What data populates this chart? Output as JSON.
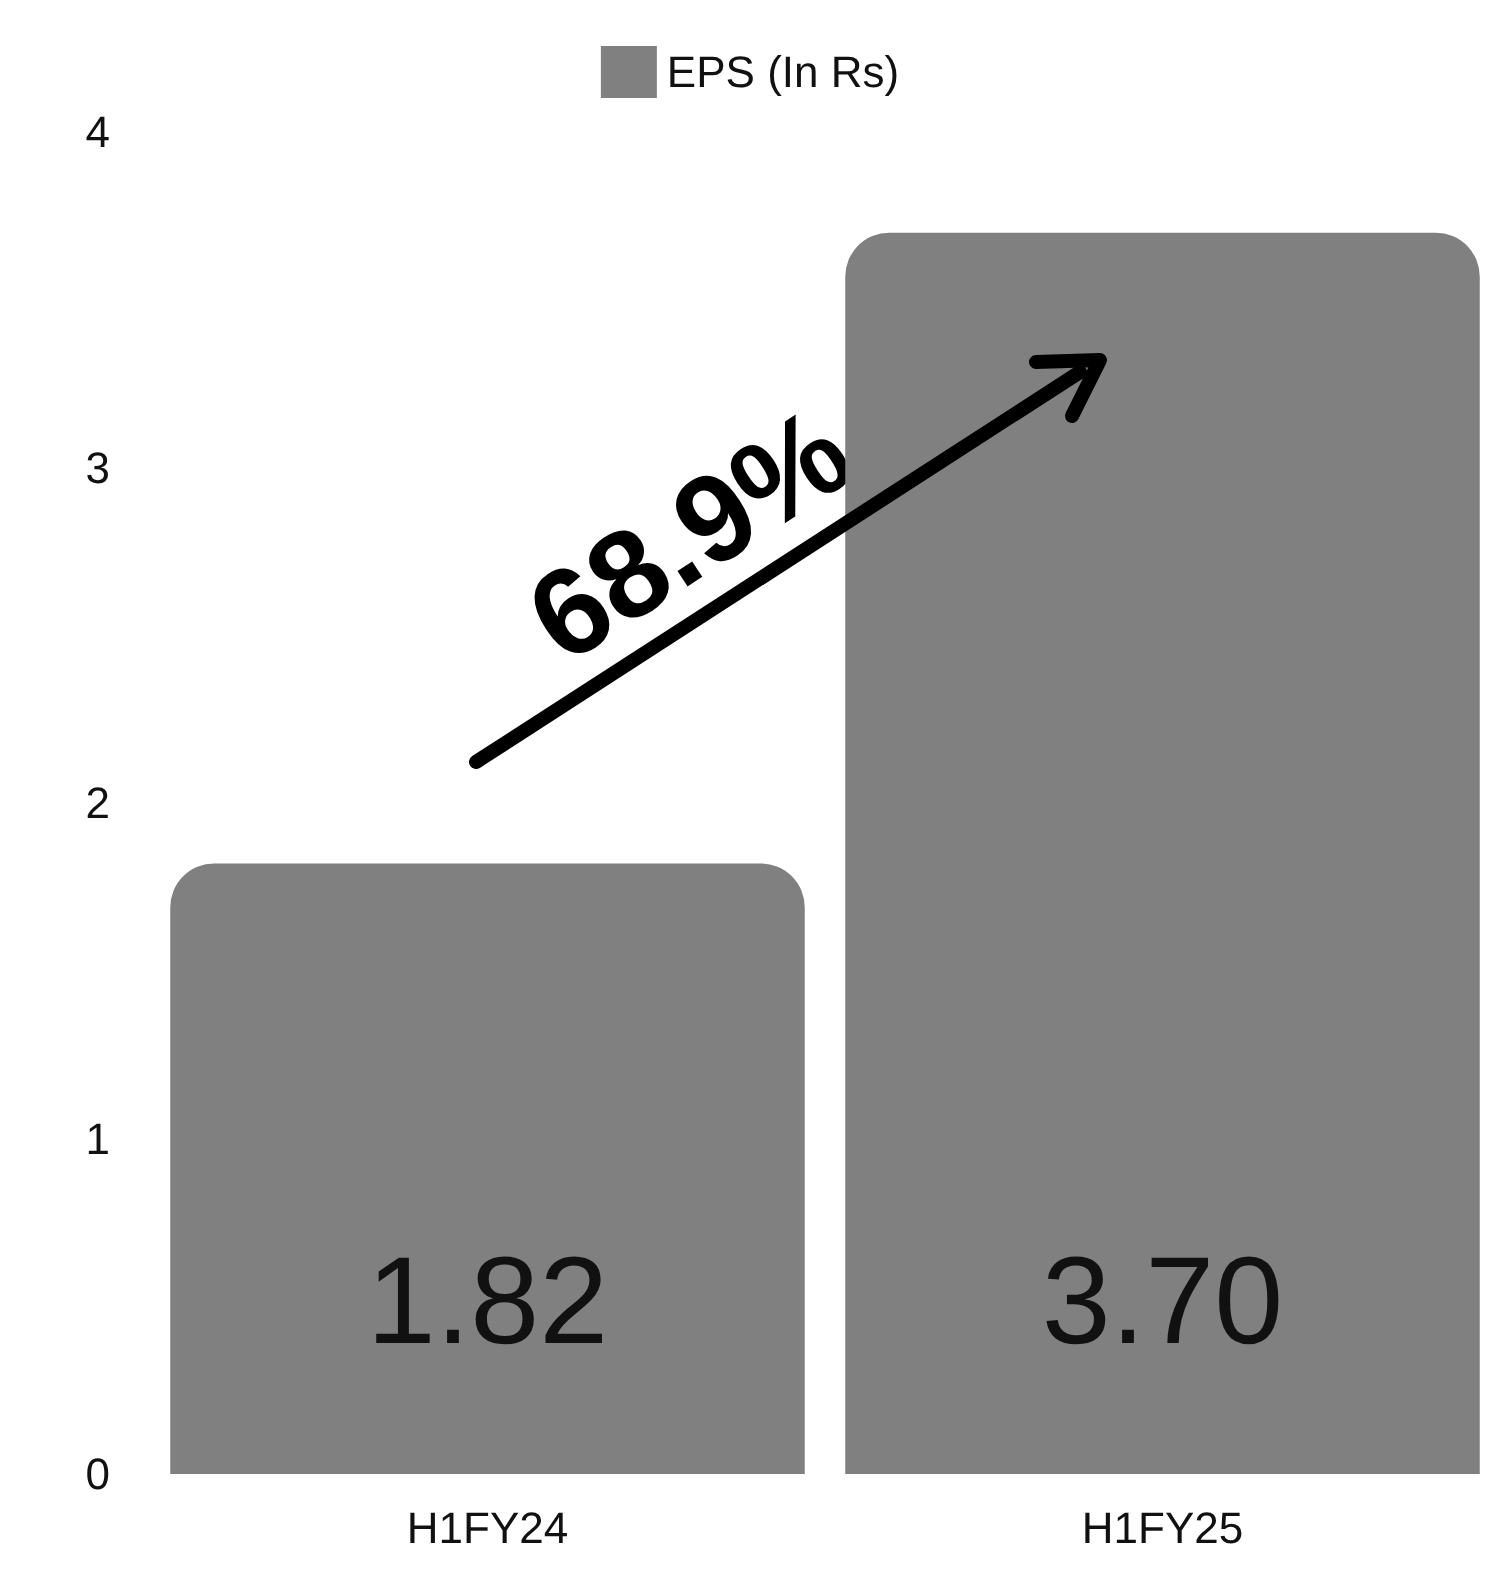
{
  "chart_data": {
    "type": "bar",
    "categories": [
      "H1FY24",
      "H1FY25"
    ],
    "series": [
      {
        "name": "EPS (In Rs)",
        "color": "#808080",
        "values": [
          1.82,
          3.7
        ],
        "value_labels": [
          "1.82",
          "3.70"
        ]
      }
    ],
    "ylim": [
      0,
      4
    ],
    "yticks": [
      0,
      1,
      2,
      3,
      4
    ],
    "grid": false,
    "legend": "top",
    "annotations": [
      "68.9%"
    ]
  }
}
